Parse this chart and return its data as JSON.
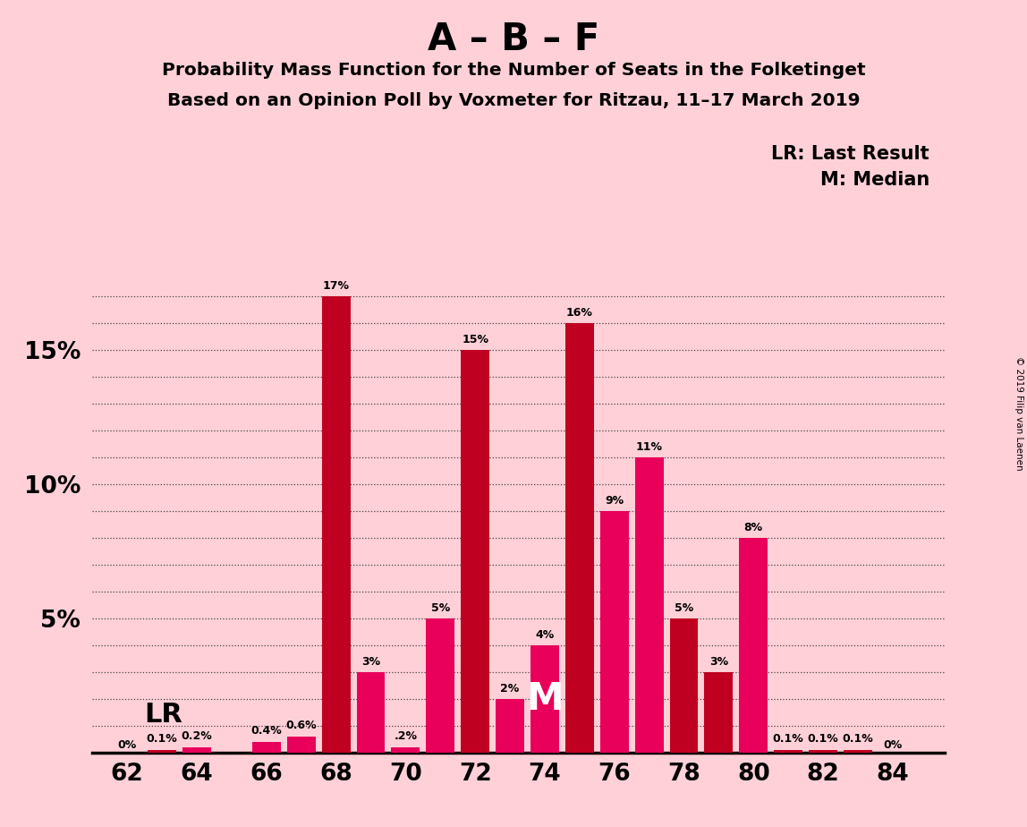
{
  "title_main": "A – B – F",
  "subtitle1": "Probability Mass Function for the Number of Seats in the Folketinget",
  "subtitle2": "Based on an Opinion Poll by Voxmeter for Ritzau, 11–17 March 2019",
  "copyright": "© 2019 Filip van Laenen",
  "legend_lr": "LR: Last Result",
  "legend_m": "M: Median",
  "seats": [
    62,
    63,
    64,
    65,
    66,
    67,
    68,
    69,
    70,
    71,
    72,
    73,
    74,
    75,
    76,
    77,
    78,
    79,
    80,
    81,
    82,
    83,
    84
  ],
  "values": [
    0.0,
    0.1,
    0.2,
    0.0,
    0.4,
    0.6,
    17.0,
    3.0,
    0.2,
    5.0,
    15.0,
    2.0,
    4.0,
    16.0,
    9.0,
    11.0,
    5.0,
    3.0,
    8.0,
    0.1,
    0.1,
    0.1,
    0.0
  ],
  "labels": [
    "0%",
    "0.1%",
    "0.2%",
    "",
    "0.4%",
    "0.6%",
    "17%",
    "3%",
    ".2%",
    "5%",
    "15%",
    "2%",
    "4%",
    "16%",
    "9%",
    "11%",
    "5%",
    "3%",
    "8%",
    "0.1%",
    "0.1%",
    "0.1%",
    "0%"
  ],
  "bar_colors": [
    "#C00020",
    "#C00020",
    "#E8005A",
    "#C00020",
    "#E8005A",
    "#E8005A",
    "#C00020",
    "#E8005A",
    "#E8005A",
    "#E8005A",
    "#C00020",
    "#E8005A",
    "#E8005A",
    "#C00020",
    "#E8005A",
    "#E8005A",
    "#C00020",
    "#C00020",
    "#E8005A",
    "#C00020",
    "#C00020",
    "#C00020",
    "#C00020"
  ],
  "median_seat": 74,
  "lr_x": 62.5,
  "lr_y": 1.4,
  "background_color": "#FFD0D8",
  "ylim": [
    0,
    18.5
  ],
  "xlim": [
    61.0,
    85.5
  ],
  "xticks": [
    62,
    64,
    66,
    68,
    70,
    72,
    74,
    76,
    78,
    80,
    82,
    84
  ],
  "ytick_positions": [
    0,
    1,
    2,
    3,
    4,
    5,
    6,
    7,
    8,
    9,
    10,
    11,
    12,
    13,
    14,
    15,
    16,
    17
  ],
  "ytick_labels": [
    "",
    "",
    "",
    "",
    "",
    "5%",
    "",
    "",
    "",
    "",
    "10%",
    "",
    "",
    "",
    "",
    "15%",
    "",
    ""
  ]
}
